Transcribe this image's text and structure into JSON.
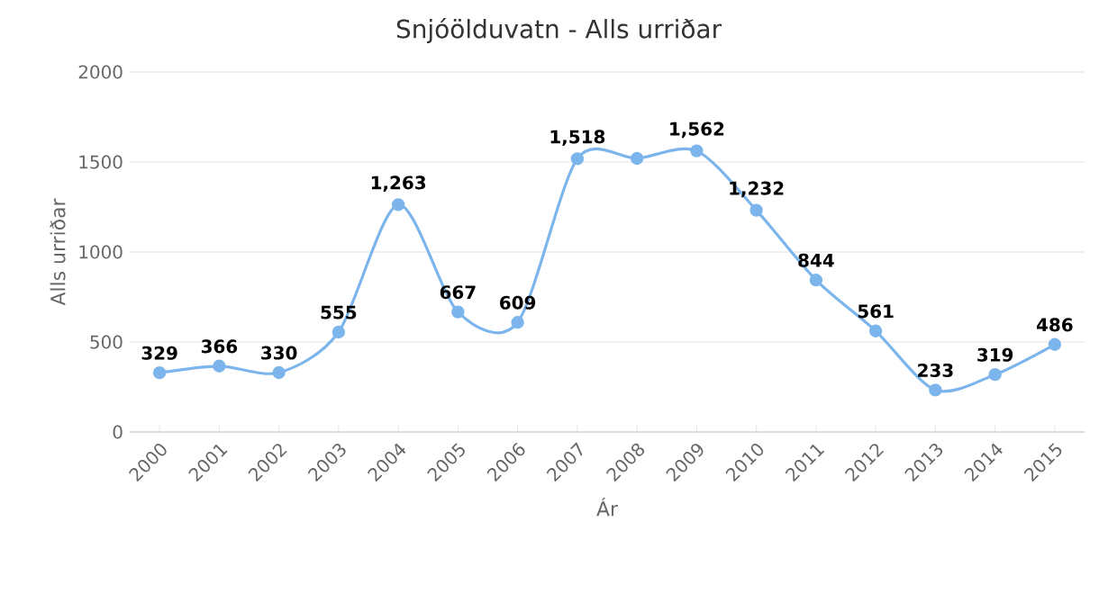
{
  "chart_data": {
    "type": "line",
    "title": "Snjóölduvatn - Alls urriðar",
    "xlabel": "Ár",
    "ylabel": "Alls urriðar",
    "categories": [
      "2000",
      "2001",
      "2002",
      "2003",
      "2004",
      "2005",
      "2006",
      "2007",
      "2008",
      "2009",
      "2010",
      "2011",
      "2012",
      "2013",
      "2014",
      "2015"
    ],
    "series": [
      {
        "color": "#7cb5ec",
        "values": [
          329,
          366,
          330,
          555,
          1263,
          667,
          609,
          1518,
          1520,
          1562,
          1232,
          844,
          561,
          233,
          319,
          486
        ],
        "value_labels": [
          "329",
          "366",
          "330",
          "555",
          "1,263",
          "667",
          "609",
          "1,518",
          null,
          "1,562",
          "1,232",
          "844",
          "561",
          "233",
          "319",
          "486"
        ]
      }
    ],
    "ylim": [
      0,
      2000
    ],
    "yticks": [
      0,
      500,
      1000,
      1500,
      2000
    ],
    "grid": "y",
    "marker": "circle",
    "line_style": "solid"
  }
}
